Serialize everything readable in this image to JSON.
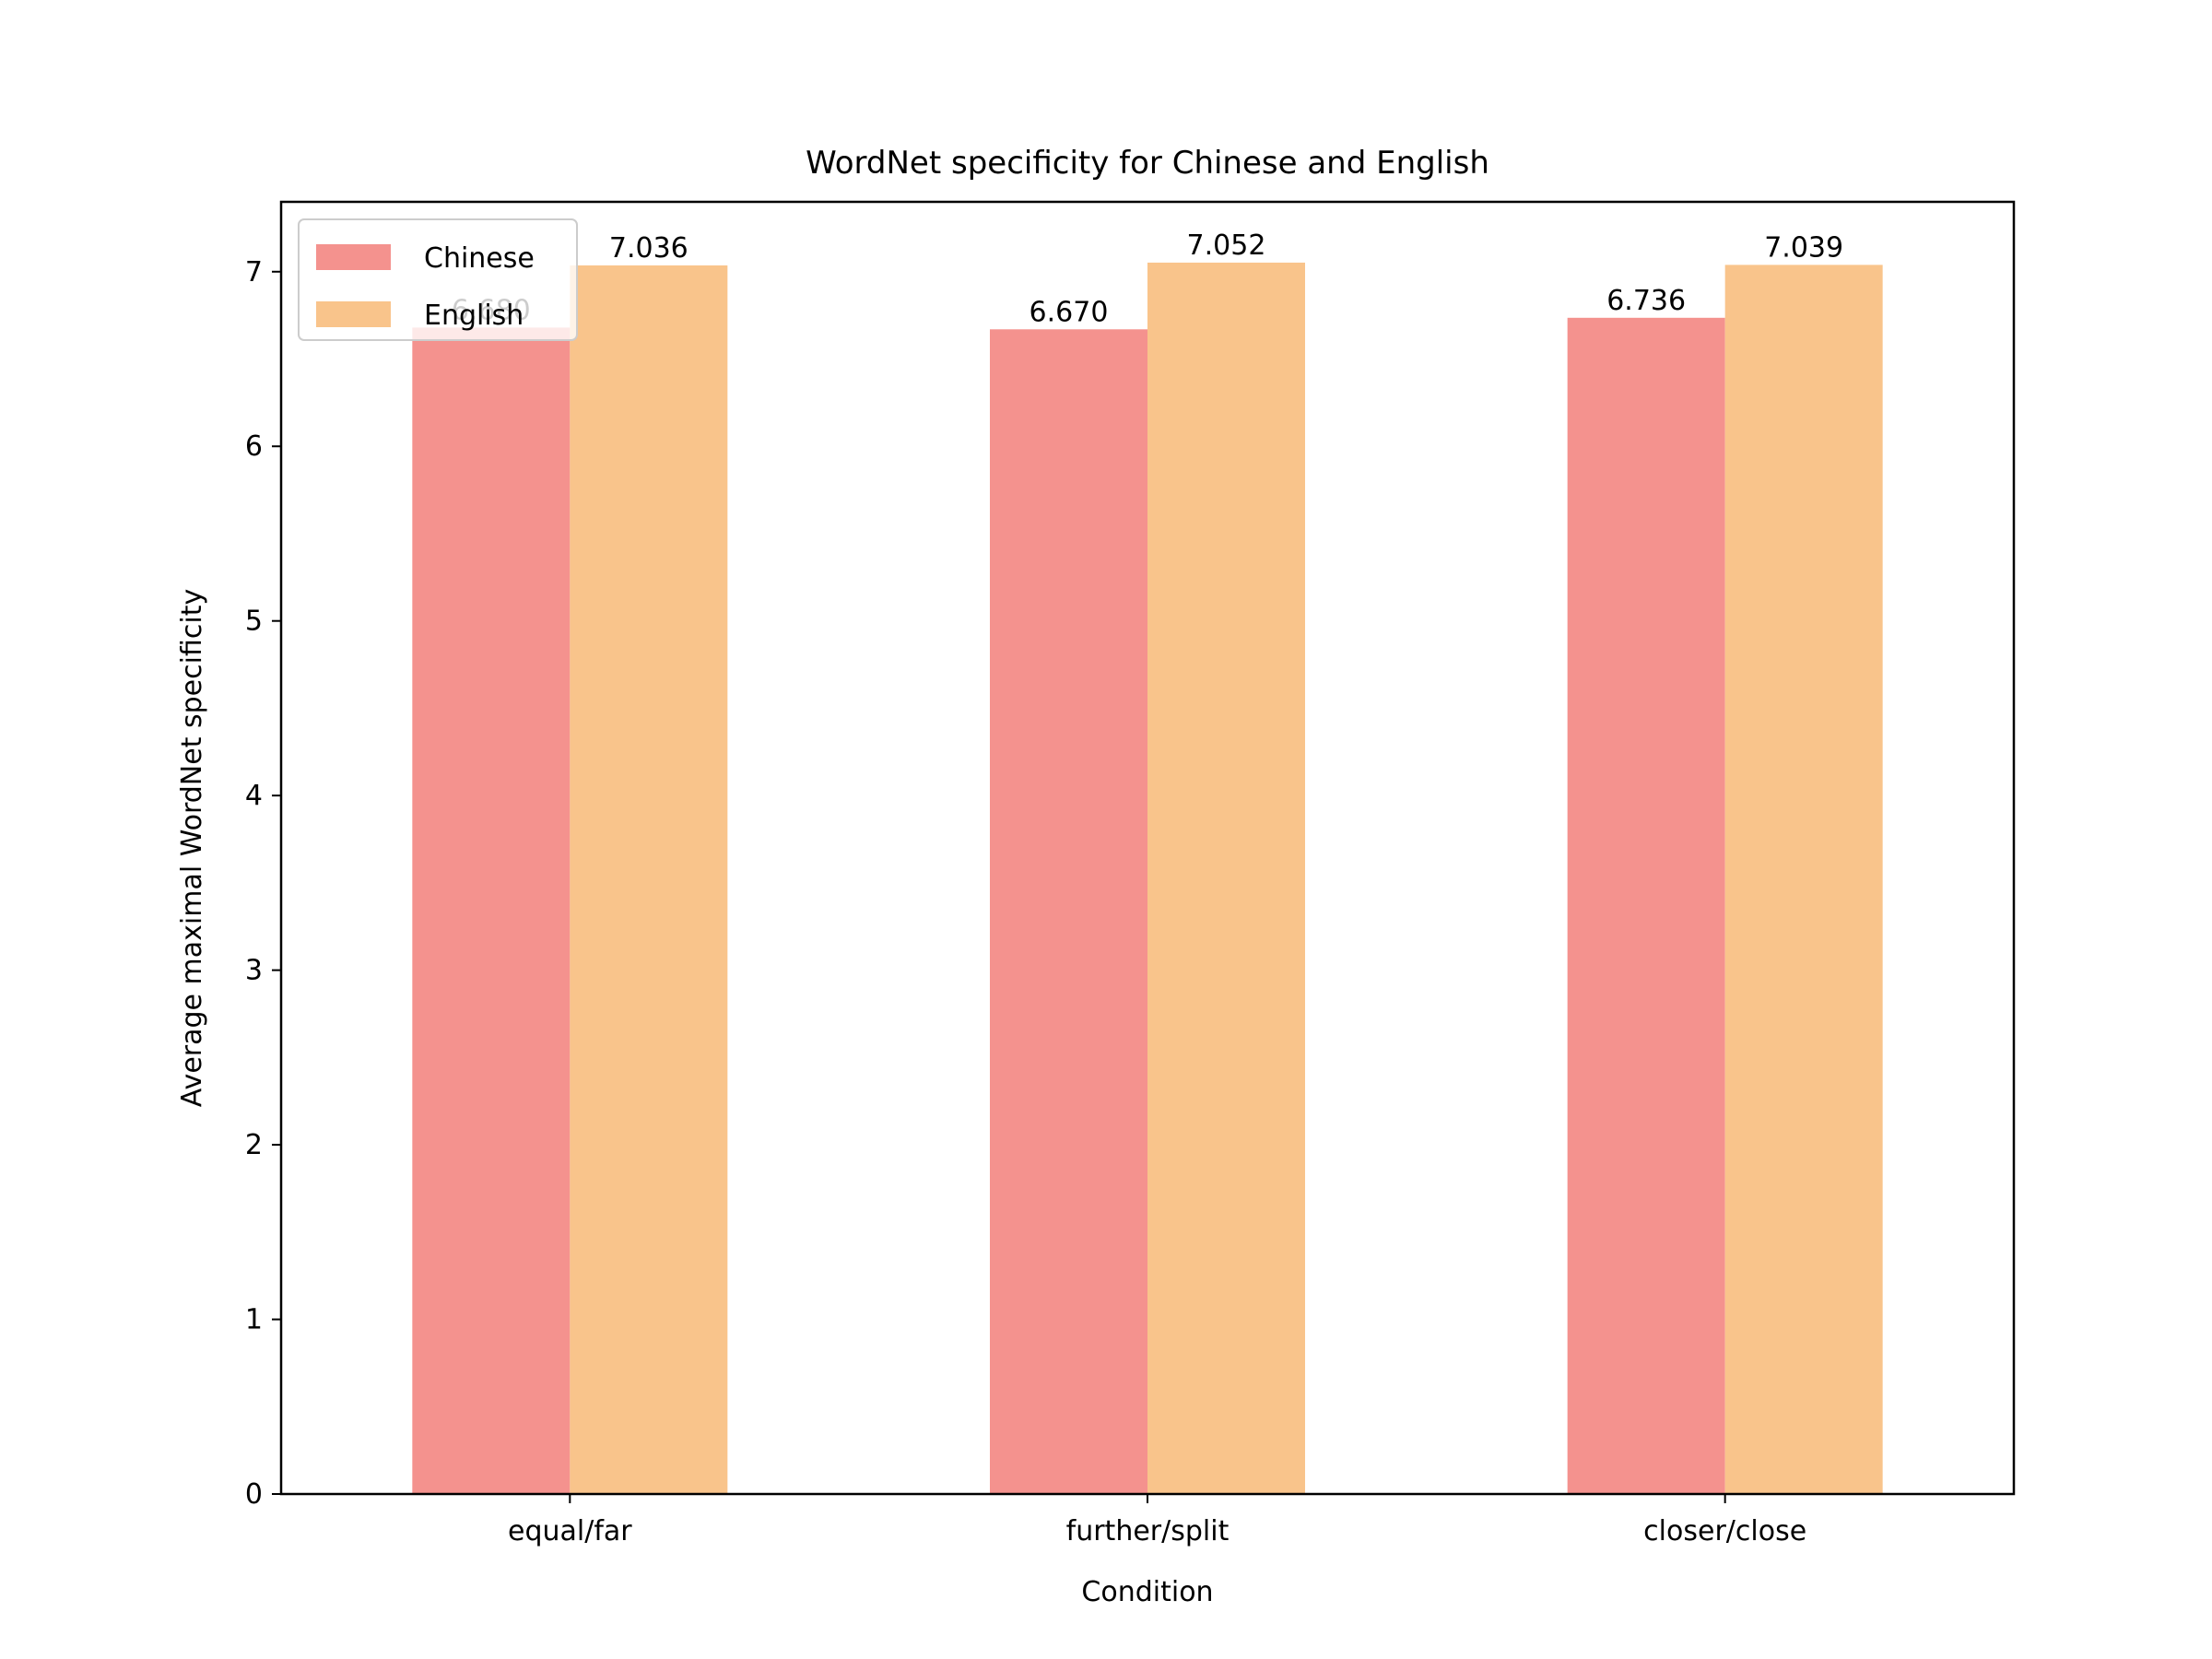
{
  "chart_data": {
    "type": "bar",
    "title": "WordNet specificity for Chinese and English",
    "xlabel": "Condition",
    "ylabel": "Average maximal WordNet specificity",
    "categories": [
      "equal/far",
      "further/split",
      "closer/close"
    ],
    "series": [
      {
        "name": "Chinese",
        "values": [
          6.68,
          6.67,
          6.736
        ],
        "labels": [
          "6.680",
          "6.670",
          "6.736"
        ],
        "color": "#f4928e"
      },
      {
        "name": "English",
        "values": [
          7.036,
          7.052,
          7.039
        ],
        "labels": [
          "7.036",
          "7.052",
          "7.039"
        ],
        "color": "#f9c48b"
      }
    ],
    "ylim": [
      0,
      7.4
    ],
    "yticks": [
      0,
      1,
      2,
      3,
      4,
      5,
      6,
      7
    ],
    "grid": false,
    "legend_position": "upper left"
  }
}
